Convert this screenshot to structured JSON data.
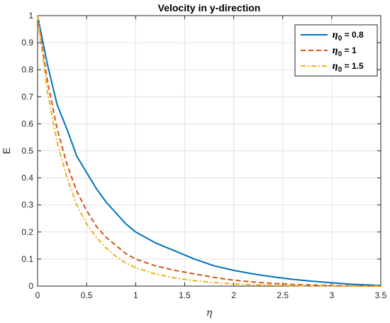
{
  "chart_data": {
    "type": "line",
    "title": "Velocity in y-direction",
    "xlabel": "η",
    "ylabel": "E",
    "xlim": [
      0,
      3.5
    ],
    "ylim": [
      0,
      1
    ],
    "xticks": [
      0,
      0.5,
      1,
      1.5,
      2,
      2.5,
      3,
      3.5
    ],
    "xtick_labels": [
      "0",
      "0.5",
      "1",
      "1.5",
      "2",
      "2.5",
      "3",
      "3.5"
    ],
    "yticks": [
      0,
      0.1,
      0.2,
      0.3,
      0.4,
      0.5,
      0.6,
      0.7,
      0.8,
      0.9,
      1
    ],
    "ytick_labels": [
      "0",
      "0.1",
      "0.2",
      "0.3",
      "0.4",
      "0.5",
      "0.6",
      "0.7",
      "0.8",
      "0.9",
      "1"
    ],
    "grid": true,
    "legend_position": "top-right",
    "x": [
      0,
      0.1,
      0.2,
      0.3,
      0.4,
      0.5,
      0.6,
      0.7,
      0.8,
      0.9,
      1.0,
      1.2,
      1.4,
      1.6,
      1.8,
      2.0,
      2.2,
      2.4,
      2.6,
      2.8,
      3.0,
      3.2,
      3.5
    ],
    "series": [
      {
        "name_symbol": "η",
        "name_subscript": "0",
        "name_value": " = 0.8",
        "color": "#0072BD",
        "style": "solid",
        "values": [
          1,
          0.82,
          0.67,
          0.58,
          0.48,
          0.42,
          0.36,
          0.31,
          0.27,
          0.23,
          0.2,
          0.16,
          0.13,
          0.1,
          0.075,
          0.058,
          0.045,
          0.034,
          0.025,
          0.018,
          0.012,
          0.007,
          0.002
        ]
      },
      {
        "name_symbol": "η",
        "name_subscript": "0",
        "name_value": " = 1",
        "color": "#D95319",
        "style": "dashed",
        "values": [
          1,
          0.76,
          0.58,
          0.45,
          0.35,
          0.28,
          0.22,
          0.18,
          0.15,
          0.12,
          0.1,
          0.075,
          0.058,
          0.045,
          0.032,
          0.022,
          0.015,
          0.01,
          0.006,
          0.004,
          0.002,
          0.001,
          0
        ]
      },
      {
        "name_symbol": "η",
        "name_subscript": "0",
        "name_value": " = 1.5",
        "color": "#EDB120",
        "style": "dashdot",
        "values": [
          1,
          0.72,
          0.53,
          0.4,
          0.3,
          0.23,
          0.18,
          0.14,
          0.11,
          0.085,
          0.068,
          0.045,
          0.03,
          0.02,
          0.013,
          0.008,
          0.005,
          0.003,
          0.002,
          0.001,
          0.0005,
          0.0002,
          0
        ]
      }
    ]
  }
}
